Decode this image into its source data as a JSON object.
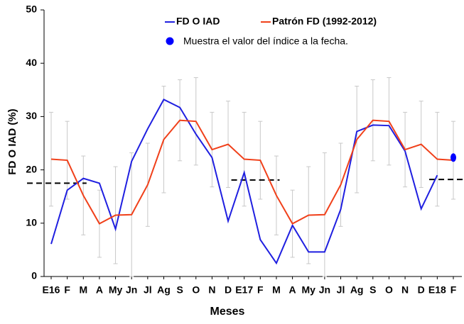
{
  "chart_data": {
    "type": "line",
    "x_label": "Meses",
    "y_label": "FD O IAD (%)",
    "categories": [
      "E16",
      "F",
      "M",
      "A",
      "My",
      "Jn",
      "Jl",
      "Ag",
      "S",
      "O",
      "N",
      "D",
      "E17",
      "F",
      "M",
      "A",
      "My",
      "Jn",
      "Jl",
      "Ag",
      "S",
      "O",
      "N",
      "D",
      "E18",
      "F"
    ],
    "series": [
      {
        "name": "FD O IAD",
        "color": "#1f1fe0",
        "values": [
          6.1,
          16.2,
          18.4,
          17.5,
          8.9,
          21.6,
          27.7,
          33.2,
          31.7,
          26.7,
          22.3,
          10.4,
          19.5,
          6.9,
          2.5,
          9.6,
          4.6,
          4.6,
          12.6,
          27.2,
          28.4,
          28.3,
          23.5,
          12.7,
          19.0,
          null
        ]
      },
      {
        "name": "Patrón FD (1992-2012)",
        "color": "#f0401a",
        "values": [
          22.0,
          21.8,
          15.2,
          9.9,
          11.5,
          11.6,
          17.2,
          25.7,
          29.3,
          29.1,
          23.8,
          24.8,
          22.0,
          21.8,
          15.2,
          9.9,
          11.5,
          11.6,
          17.2,
          25.7,
          29.3,
          29.1,
          23.8,
          24.8,
          22.0,
          21.8
        ],
        "errors": [
          8.8,
          7.3,
          7.4,
          6.3,
          9.1,
          11.6,
          7.8,
          10.0,
          7.6,
          8.2,
          7.0,
          8.1,
          8.8,
          7.3,
          7.4,
          6.3,
          9.1,
          11.6,
          7.8,
          10.0,
          7.6,
          8.2,
          7.0,
          8.1,
          8.8,
          7.3
        ],
        "error_color": "#c8c8c8"
      }
    ],
    "current_point": {
      "name": "Muestra el valor del índice a la fecha.",
      "color": "#0000ff",
      "x": 25,
      "value": 22.3
    },
    "reference_lines": [
      {
        "value": 17.5,
        "from": -1.5,
        "to": 2.2
      },
      {
        "value": 18.1,
        "from": 11.2,
        "to": 14.2
      },
      {
        "value": 18.2,
        "from": 23.5,
        "to": 25.7
      }
    ],
    "ylim": [
      0,
      50
    ],
    "yticks": [
      0,
      10,
      20,
      30,
      40,
      50
    ]
  }
}
